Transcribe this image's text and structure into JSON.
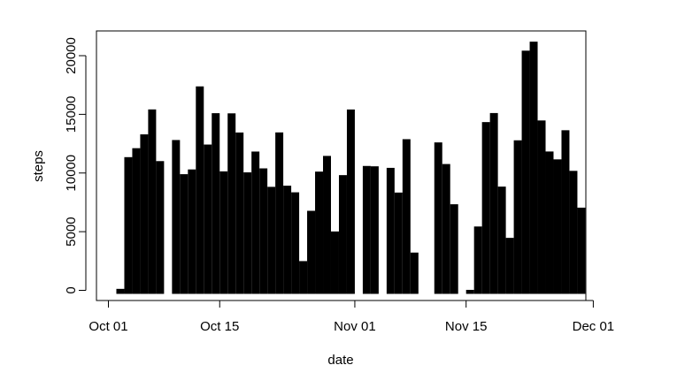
{
  "chart_data": {
    "type": "bar",
    "xlabel": "date",
    "ylabel": "steps",
    "ylim": [
      0,
      21194
    ],
    "xlim": [
      "2012-10-01",
      "2012-11-30"
    ],
    "bar_color": "#000000",
    "x_ticks": [
      {
        "date": "2012-10-01",
        "label": "Oct 01"
      },
      {
        "date": "2012-10-15",
        "label": "Oct 15"
      },
      {
        "date": "2012-11-01",
        "label": "Nov 01"
      },
      {
        "date": "2012-11-15",
        "label": "Nov 15"
      },
      {
        "date": "2012-12-01",
        "label": "Dec 01"
      }
    ],
    "y_ticks": [
      {
        "value": 0,
        "label": "0"
      },
      {
        "value": 5000,
        "label": "5000"
      },
      {
        "value": 10000,
        "label": "10000"
      },
      {
        "value": 15000,
        "label": "15000"
      },
      {
        "value": 20000,
        "label": "20000"
      }
    ],
    "categories": [
      "2012-10-01",
      "2012-10-02",
      "2012-10-03",
      "2012-10-04",
      "2012-10-05",
      "2012-10-06",
      "2012-10-07",
      "2012-10-08",
      "2012-10-09",
      "2012-10-10",
      "2012-10-11",
      "2012-10-12",
      "2012-10-13",
      "2012-10-14",
      "2012-10-15",
      "2012-10-16",
      "2012-10-17",
      "2012-10-18",
      "2012-10-19",
      "2012-10-20",
      "2012-10-21",
      "2012-10-22",
      "2012-10-23",
      "2012-10-24",
      "2012-10-25",
      "2012-10-26",
      "2012-10-27",
      "2012-10-28",
      "2012-10-29",
      "2012-10-30",
      "2012-10-31",
      "2012-11-01",
      "2012-11-02",
      "2012-11-03",
      "2012-11-04",
      "2012-11-05",
      "2012-11-06",
      "2012-11-07",
      "2012-11-08",
      "2012-11-09",
      "2012-11-10",
      "2012-11-11",
      "2012-11-12",
      "2012-11-13",
      "2012-11-14",
      "2012-11-15",
      "2012-11-16",
      "2012-11-17",
      "2012-11-18",
      "2012-11-19",
      "2012-11-20",
      "2012-11-21",
      "2012-11-22",
      "2012-11-23",
      "2012-11-24",
      "2012-11-25",
      "2012-11-26",
      "2012-11-27",
      "2012-11-28",
      "2012-11-29",
      "2012-11-30"
    ],
    "values": [
      0,
      126,
      11352,
      12116,
      13294,
      15420,
      11015,
      0,
      12811,
      9900,
      10304,
      17382,
      12426,
      15098,
      10139,
      15084,
      13452,
      10056,
      11829,
      10395,
      8821,
      13460,
      8918,
      8355,
      2492,
      6778,
      10119,
      11458,
      5018,
      9819,
      15414,
      0,
      10600,
      10571,
      0,
      10439,
      8334,
      12883,
      3219,
      0,
      0,
      12608,
      10765,
      7336,
      0,
      41,
      5441,
      14339,
      15110,
      8841,
      4472,
      12787,
      20427,
      21194,
      14478,
      11834,
      11162,
      13646,
      10183,
      7047,
      0
    ]
  }
}
